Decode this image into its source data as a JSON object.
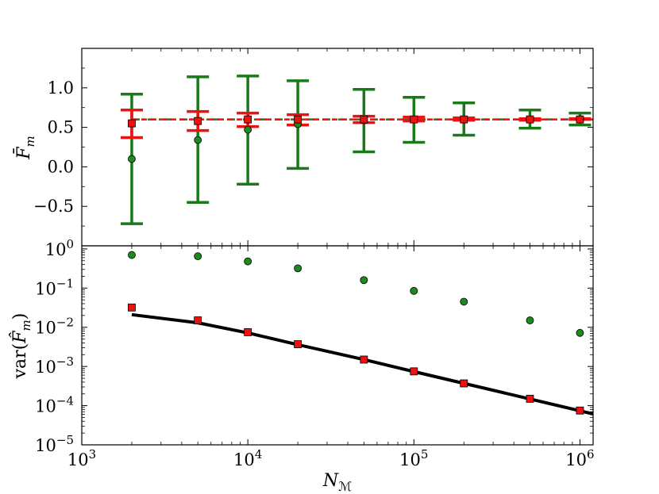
{
  "colors": {
    "green": "#1a7a1a",
    "green_marker": "#1e8a1e",
    "red": "#ee1111",
    "black": "#000000"
  },
  "chart_data": [
    {
      "type": "scatter",
      "panel": "top",
      "xscale": "log",
      "xlim": [
        1000,
        1200000
      ],
      "ylim": [
        -1.0,
        1.5
      ],
      "ylabel": "F̄_m",
      "yticks": [
        -0.5,
        0.0,
        0.5,
        1.0
      ],
      "ytick_labels": [
        "−0.5",
        "0.0",
        "0.5",
        "1.0"
      ],
      "reference_line": 0.6,
      "x": [
        2000,
        5000,
        10000,
        20000,
        50000,
        100000,
        200000,
        500000,
        1000000
      ],
      "series": [
        {
          "name": "green-estimator",
          "marker": "circle",
          "mean": [
            0.1,
            0.34,
            0.47,
            0.54,
            0.59,
            0.6,
            0.6,
            0.6,
            0.6
          ],
          "err_low": [
            -0.72,
            -0.45,
            -0.22,
            -0.02,
            0.19,
            0.31,
            0.4,
            0.49,
            0.53
          ],
          "err_high": [
            0.92,
            1.14,
            1.15,
            1.09,
            0.98,
            0.88,
            0.81,
            0.72,
            0.68
          ]
        },
        {
          "name": "red-estimator",
          "marker": "square",
          "mean": [
            0.55,
            0.58,
            0.6,
            0.6,
            0.6,
            0.6,
            0.6,
            0.6,
            0.6
          ],
          "err_low": [
            0.37,
            0.46,
            0.51,
            0.53,
            0.56,
            0.58,
            0.59,
            0.59,
            0.6
          ],
          "err_high": [
            0.72,
            0.7,
            0.68,
            0.66,
            0.64,
            0.63,
            0.62,
            0.61,
            0.61
          ]
        }
      ]
    },
    {
      "type": "scatter",
      "panel": "bottom",
      "xscale": "log",
      "yscale": "log",
      "xlim": [
        1000,
        1200000
      ],
      "ylim": [
        1e-05,
        1.2
      ],
      "xlabel": "N_M",
      "ylabel": "var(F̂_m)",
      "xticks": [
        1000,
        10000,
        100000,
        1000000
      ],
      "xtick_labels": [
        {
          "base": "10",
          "exp": "3"
        },
        {
          "base": "10",
          "exp": "4"
        },
        {
          "base": "10",
          "exp": "5"
        },
        {
          "base": "10",
          "exp": "6"
        }
      ],
      "yticks": [
        1e-05,
        0.0001,
        0.001,
        0.01,
        0.1,
        1
      ],
      "ytick_labels": [
        {
          "base": "10",
          "exp": "−5"
        },
        {
          "base": "10",
          "exp": "−4"
        },
        {
          "base": "10",
          "exp": "−3"
        },
        {
          "base": "10",
          "exp": "−2"
        },
        {
          "base": "10",
          "exp": "−1"
        },
        {
          "base": "10",
          "exp": "0"
        }
      ],
      "x": [
        2000,
        5000,
        10000,
        20000,
        50000,
        100000,
        200000,
        500000,
        1000000
      ],
      "series": [
        {
          "name": "green-variance",
          "marker": "circle",
          "values": [
            0.7,
            0.65,
            0.48,
            0.32,
            0.16,
            0.085,
            0.045,
            0.015,
            0.0072
          ]
        },
        {
          "name": "red-variance",
          "marker": "square",
          "values": [
            0.032,
            0.015,
            0.0075,
            0.0037,
            0.0015,
            0.00075,
            0.00037,
            0.00015,
            7.5e-05
          ]
        },
        {
          "name": "theory-line",
          "style": "line",
          "x": [
            2000,
            5000,
            10000,
            20000,
            50000,
            100000,
            200000,
            500000,
            1000000,
            1200000
          ],
          "values": [
            0.021,
            0.013,
            0.0072,
            0.0036,
            0.0015,
            0.00074,
            0.00037,
            0.000148,
            7.4e-05,
            6.15e-05
          ]
        }
      ]
    }
  ]
}
